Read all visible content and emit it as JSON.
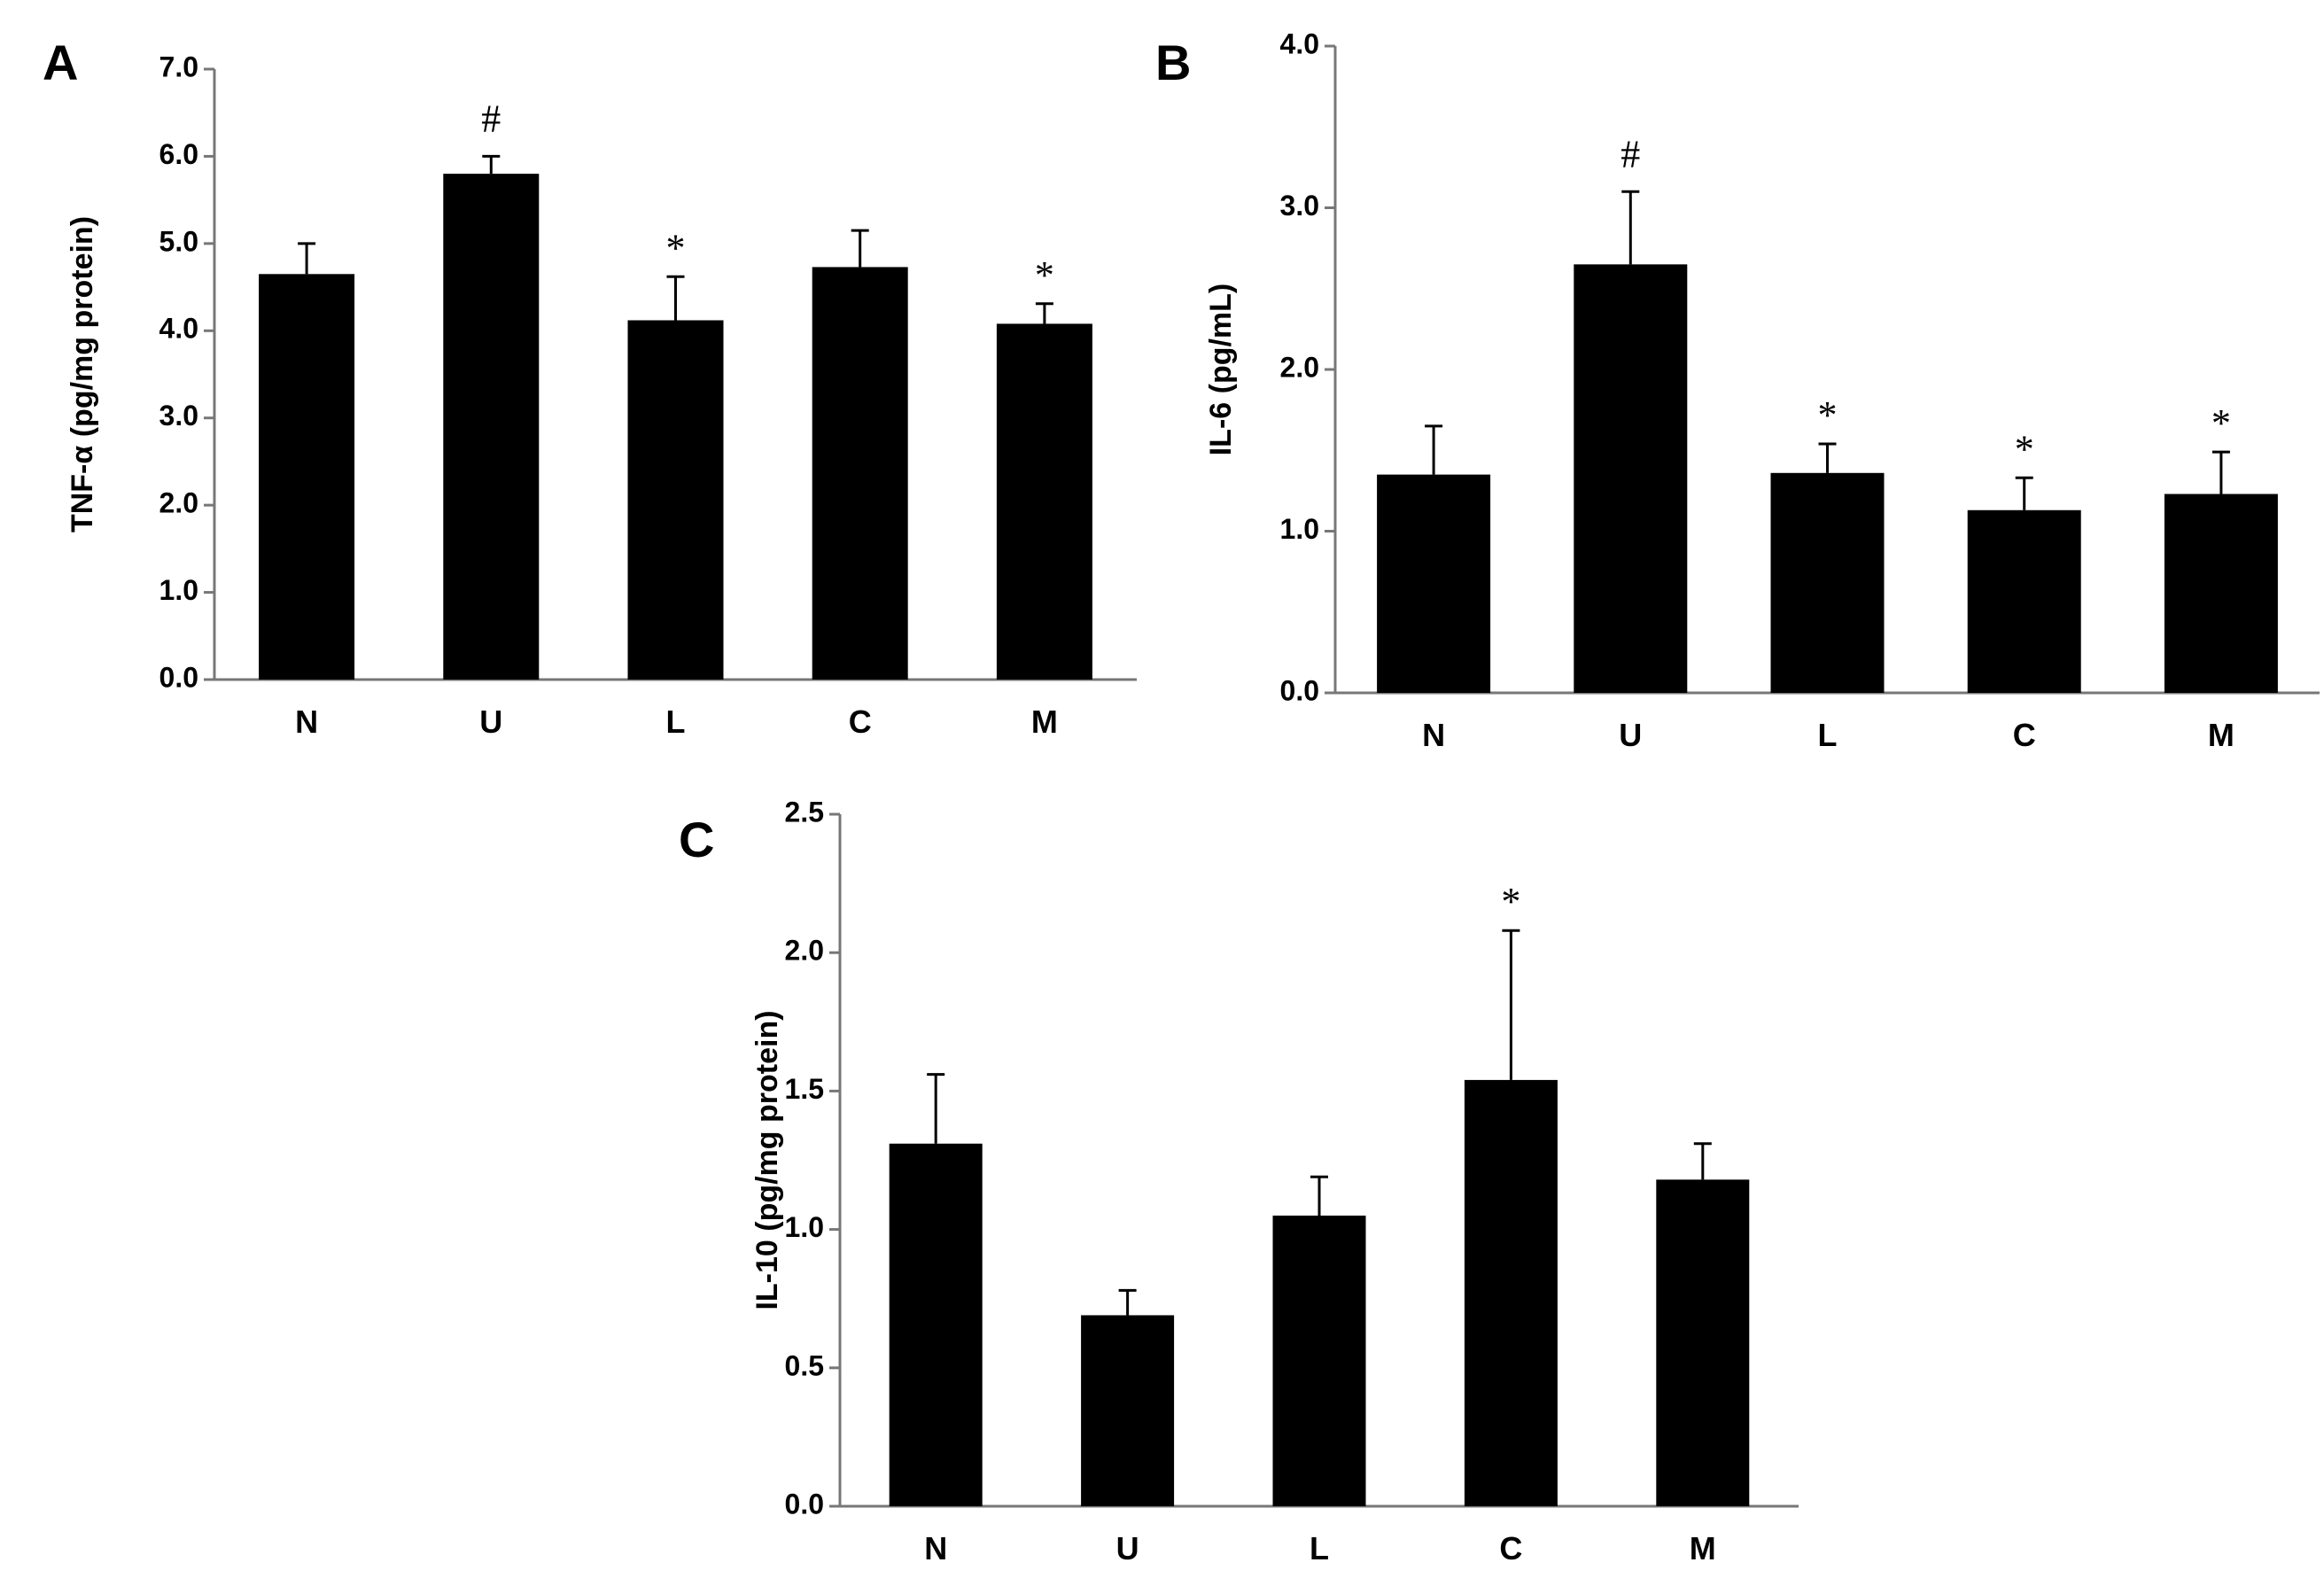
{
  "chart_data": [
    {
      "type": "bar",
      "panel_label": "A",
      "categories": [
        "N",
        "U",
        "L",
        "C",
        "M"
      ],
      "values": [
        4.65,
        5.8,
        4.12,
        4.73,
        4.08
      ],
      "errors": [
        0.35,
        0.2,
        0.5,
        0.42,
        0.23
      ],
      "annotations": [
        "",
        "#",
        "*",
        "",
        "*"
      ],
      "ylabel": "TNF-α (pg/mg protein)",
      "ylim": [
        0,
        7
      ],
      "yticks": [
        "0.0",
        "1.0",
        "2.0",
        "3.0",
        "4.0",
        "5.0",
        "6.0",
        "7.0"
      ],
      "grid": false,
      "bar_color": "#000000"
    },
    {
      "type": "bar",
      "panel_label": "B",
      "categories": [
        "N",
        "U",
        "L",
        "C",
        "M"
      ],
      "values": [
        1.35,
        2.65,
        1.36,
        1.13,
        1.23
      ],
      "errors": [
        0.3,
        0.45,
        0.18,
        0.2,
        0.26
      ],
      "annotations": [
        "",
        "#",
        "*",
        "*",
        "*"
      ],
      "ylabel": "IL-6 (pg/mL)",
      "ylim": [
        0,
        4
      ],
      "yticks": [
        "0.0",
        "1.0",
        "2.0",
        "3.0",
        "4.0"
      ],
      "grid": false,
      "bar_color": "#000000"
    },
    {
      "type": "bar",
      "panel_label": "C",
      "categories": [
        "N",
        "U",
        "L",
        "C",
        "M"
      ],
      "values": [
        1.31,
        0.69,
        1.05,
        1.54,
        1.18
      ],
      "errors": [
        0.25,
        0.09,
        0.14,
        0.54,
        0.13
      ],
      "annotations": [
        "",
        "",
        "",
        "*",
        ""
      ],
      "ylabel": "IL-10 (pg/mg protein)",
      "ylim": [
        0,
        2.5
      ],
      "yticks": [
        "0.0",
        "0.5",
        "1.0",
        "1.5",
        "2.0",
        "2.5"
      ],
      "grid": false,
      "bar_color": "#000000"
    }
  ]
}
